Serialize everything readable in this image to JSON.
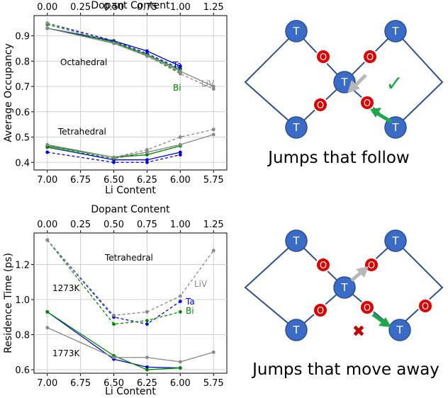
{
  "chart_data": [
    {
      "type": "line",
      "top_axis": {
        "label": "Dopant Content",
        "ticks": [
          "0.00",
          "0.25",
          "0.50",
          "0.75",
          "1.00",
          "1.25"
        ]
      },
      "bottom_axis": {
        "label": "Li Content",
        "ticks": [
          "7.00",
          "6.75",
          "6.50",
          "6.25",
          "6.00",
          "5.75"
        ],
        "xlim": [
          7.1,
          5.65
        ]
      },
      "ylabel": "Average Occupancy",
      "ylim": [
        0.37,
        0.98
      ],
      "yticks": [
        "0.4",
        "0.5",
        "0.6",
        "0.7",
        "0.8",
        "0.9"
      ],
      "yticks_values": [
        0.4,
        0.5,
        0.6,
        0.7,
        0.8,
        0.9
      ],
      "annotations": {
        "octahedral": "Octahedral",
        "tetrahedral": "Tetrahedral"
      },
      "legend_labels": {
        "ta": "Ta",
        "bi": "Bi",
        "liv": "LiV"
      },
      "colors": {
        "ta": "#0000dd",
        "bi": "#008800",
        "liv": "#888888"
      },
      "series": [
        {
          "name": "Ta octahedral solid",
          "color_key": "ta",
          "dash": false,
          "x": [
            7.0,
            6.5,
            6.25,
            6.0
          ],
          "y": [
            0.93,
            0.88,
            0.84,
            0.78
          ]
        },
        {
          "name": "Ta octahedral dashed",
          "color_key": "ta",
          "dash": true,
          "x": [
            7.0,
            6.5,
            6.25,
            6.0
          ],
          "y": [
            0.95,
            0.88,
            0.83,
            0.77
          ]
        },
        {
          "name": "Bi octahedral solid",
          "color_key": "bi",
          "dash": false,
          "x": [
            7.0,
            6.5,
            6.25,
            6.0
          ],
          "y": [
            0.93,
            0.875,
            0.825,
            0.765
          ]
        },
        {
          "name": "Bi octahedral dashed",
          "color_key": "bi",
          "dash": true,
          "x": [
            7.0,
            6.5,
            6.25,
            6.0
          ],
          "y": [
            0.945,
            0.875,
            0.82,
            0.755
          ]
        },
        {
          "name": "LiV octahedral solid",
          "color_key": "liv",
          "dash": false,
          "x": [
            7.0,
            6.5,
            6.25,
            6.0,
            5.75
          ],
          "y": [
            0.93,
            0.87,
            0.82,
            0.76,
            0.7
          ]
        },
        {
          "name": "LiV octahedral dashed",
          "color_key": "liv",
          "dash": true,
          "x": [
            7.0,
            6.5,
            6.25,
            6.0,
            5.75
          ],
          "y": [
            0.95,
            0.87,
            0.82,
            0.75,
            0.69
          ]
        },
        {
          "name": "Ta tetrahedral solid",
          "color_key": "ta",
          "dash": false,
          "x": [
            7.0,
            6.5,
            6.25,
            6.0
          ],
          "y": [
            0.46,
            0.41,
            0.41,
            0.44
          ]
        },
        {
          "name": "Ta tetrahedral dashed",
          "color_key": "ta",
          "dash": true,
          "x": [
            7.0,
            6.5,
            6.25,
            6.0
          ],
          "y": [
            0.44,
            0.4,
            0.4,
            0.43
          ]
        },
        {
          "name": "Bi tetrahedral solid",
          "color_key": "bi",
          "dash": false,
          "x": [
            7.0,
            6.5,
            6.25,
            6.0
          ],
          "y": [
            0.465,
            0.42,
            0.43,
            0.465
          ]
        },
        {
          "name": "Bi tetrahedral dashed",
          "color_key": "bi",
          "dash": true,
          "x": [
            7.0,
            6.5,
            6.25,
            6.0
          ],
          "y": [
            0.46,
            0.415,
            0.44,
            0.47
          ]
        },
        {
          "name": "LiV tetrahedral solid",
          "color_key": "liv",
          "dash": false,
          "x": [
            7.0,
            6.5,
            6.25,
            6.0,
            5.75
          ],
          "y": [
            0.47,
            0.42,
            0.44,
            0.47,
            0.51
          ]
        },
        {
          "name": "LiV tetrahedral dashed",
          "color_key": "liv",
          "dash": true,
          "x": [
            7.0,
            6.5,
            6.25,
            6.0,
            5.75
          ],
          "y": [
            0.47,
            0.42,
            0.45,
            0.5,
            0.53
          ]
        }
      ]
    },
    {
      "type": "line",
      "top_axis": {
        "label": "Dopant Content",
        "ticks": [
          "0.00",
          "0.25",
          "0.50",
          "0.75",
          "1.00",
          "1.25"
        ]
      },
      "bottom_axis": {
        "label": "Li Content",
        "ticks": [
          "7.00",
          "6.75",
          "6.50",
          "6.25",
          "6.00",
          "5.75"
        ],
        "xlim": [
          7.1,
          5.65
        ]
      },
      "ylabel": "Residence Time (ps)",
      "ylim": [
        0.58,
        1.38
      ],
      "yticks": [
        "0.6",
        "0.8",
        "1.0",
        "1.2"
      ],
      "yticks_values": [
        0.6,
        0.8,
        1.0,
        1.2
      ],
      "annotations": {
        "tetrahedral": "Tetrahedral",
        "t1273": "1273K",
        "t1773": "1773K"
      },
      "legend_labels": {
        "ta": "Ta",
        "bi": "Bi",
        "liv": "LiV"
      },
      "colors": {
        "ta": "#0000dd",
        "bi": "#008800",
        "liv": "#888888"
      },
      "series": [
        {
          "name": "Ta 1273K",
          "color_key": "ta",
          "dash": true,
          "x": [
            7.0,
            6.5,
            6.25,
            6.0
          ],
          "y": [
            1.34,
            0.9,
            0.86,
            0.99
          ]
        },
        {
          "name": "Bi 1273K",
          "color_key": "bi",
          "dash": true,
          "x": [
            7.0,
            6.5,
            6.25,
            6.0
          ],
          "y": [
            1.34,
            0.86,
            0.88,
            0.93
          ]
        },
        {
          "name": "LiV 1273K",
          "color_key": "liv",
          "dash": true,
          "x": [
            7.0,
            6.5,
            6.25,
            6.0,
            5.75
          ],
          "y": [
            1.34,
            0.91,
            0.93,
            1.02,
            1.28
          ]
        },
        {
          "name": "Ta 1773K",
          "color_key": "ta",
          "dash": false,
          "x": [
            7.0,
            6.5,
            6.25,
            6.0
          ],
          "y": [
            0.93,
            0.66,
            0.615,
            0.61
          ]
        },
        {
          "name": "Bi 1773K",
          "color_key": "bi",
          "dash": false,
          "x": [
            7.0,
            6.5,
            6.25,
            6.0
          ],
          "y": [
            0.93,
            0.68,
            0.6,
            0.61
          ]
        },
        {
          "name": "LiV 1773K",
          "color_key": "liv",
          "dash": false,
          "x": [
            7.0,
            6.5,
            6.25,
            6.0,
            5.75
          ],
          "y": [
            0.84,
            0.67,
            0.67,
            0.645,
            0.7
          ]
        }
      ]
    }
  ],
  "diagrams": {
    "top": {
      "caption": "Jumps that follow",
      "node_label": "T",
      "octa_label": "O",
      "check_mark": "✓"
    },
    "bottom": {
      "caption": "Jumps that move away",
      "node_label": "T",
      "octa_label": "O",
      "cross_mark": "✖"
    }
  }
}
